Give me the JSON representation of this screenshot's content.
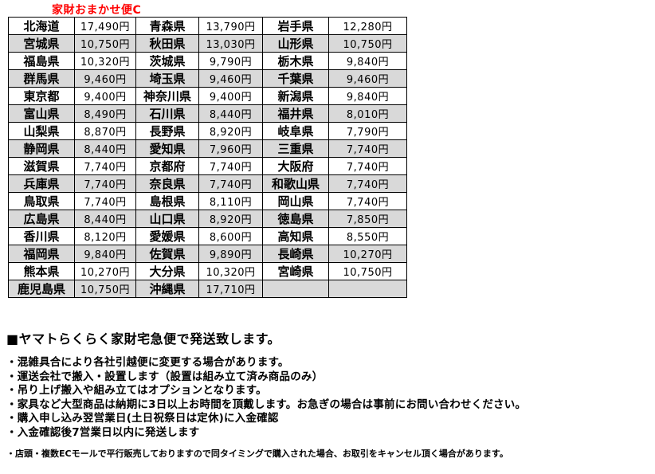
{
  "colors": {
    "title": "#ff0000",
    "row_alt": "#d9d9d9",
    "border": "#000000"
  },
  "title": "家財おまかせ便C",
  "table": {
    "rows": [
      [
        "北海道",
        "17,490円",
        "青森県",
        "13,790円",
        "岩手県",
        "12,280円"
      ],
      [
        "宮城県",
        "10,750円",
        "秋田県",
        "13,030円",
        "山形県",
        "10,750円"
      ],
      [
        "福島県",
        "10,320円",
        "茨城県",
        "9,790円",
        "栃木県",
        "9,840円"
      ],
      [
        "群馬県",
        "9,460円",
        "埼玉県",
        "9,460円",
        "千葉県",
        "9,460円"
      ],
      [
        "東京都",
        "9,400円",
        "神奈川県",
        "9,400円",
        "新潟県",
        "9,840円"
      ],
      [
        "富山県",
        "8,490円",
        "石川県",
        "8,440円",
        "福井県",
        "8,010円"
      ],
      [
        "山梨県",
        "8,870円",
        "長野県",
        "8,920円",
        "岐阜県",
        "7,790円"
      ],
      [
        "静岡県",
        "8,440円",
        "愛知県",
        "7,960円",
        "三重県",
        "7,740円"
      ],
      [
        "滋賀県",
        "7,740円",
        "京都府",
        "7,740円",
        "大阪府",
        "7,740円"
      ],
      [
        "兵庫県",
        "7,740円",
        "奈良県",
        "7,740円",
        "和歌山県",
        "7,740円"
      ],
      [
        "鳥取県",
        "7,740円",
        "島根県",
        "8,110円",
        "岡山県",
        "7,740円"
      ],
      [
        "広島県",
        "8,440円",
        "山口県",
        "8,920円",
        "徳島県",
        "7,850円"
      ],
      [
        "香川県",
        "8,120円",
        "愛媛県",
        "8,600円",
        "高知県",
        "8,550円"
      ],
      [
        "福岡県",
        "9,840円",
        "佐賀県",
        "9,890円",
        "長崎県",
        "10,270円"
      ],
      [
        "熊本県",
        "10,270円",
        "大分県",
        "10,320円",
        "宮崎県",
        "10,750円"
      ],
      [
        "鹿児島県",
        "10,750円",
        "沖縄県",
        "17,710円",
        "",
        ""
      ]
    ]
  },
  "notes": {
    "heading": "■ヤマトらくらく家財宅急便で発送致します。",
    "bullets": [
      "・混雑具合により各社引越便に変更する場合があります。",
      "・運送会社で搬入・設置します（設置は組み立て済み商品のみ）",
      "・吊り上げ搬入や組み立てはオプションとなります。",
      "・家具など大型商品は納期に3日以上お時間を頂戴します。お急ぎの場合は事前にお問い合わせください。",
      "・購入申し込み翌営業日(土日祝祭日は定休)に入金確認",
      "・入金確認後7営業日以内に発送します"
    ],
    "footnote": "・店頭・複数ECモールで平行販売しておりますので同タイミングで購入された場合、お取引をキャンセル頂く場合があります。"
  }
}
